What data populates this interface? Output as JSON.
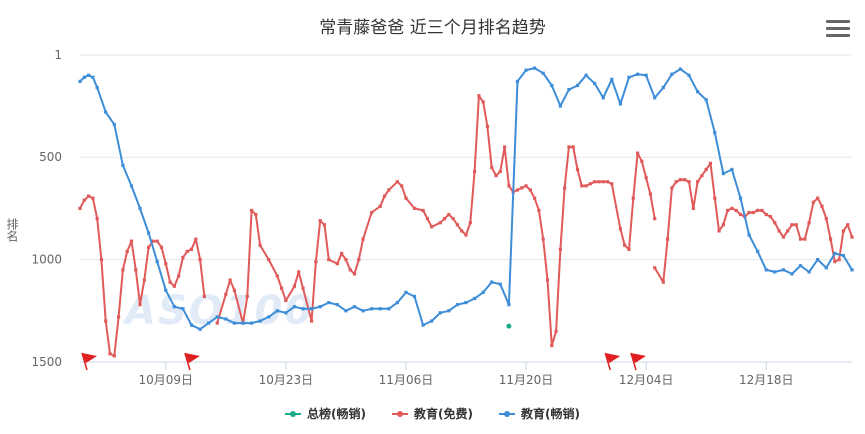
{
  "title": "常青藤爸爸 近三个月排名趋势",
  "watermark": "ASO100",
  "menu_icon": "hamburger-icon",
  "chart_data": {
    "type": "line",
    "title": "常青藤爸爸 近三个月排名趋势",
    "ylabel": "排名",
    "xlabel": "",
    "y_reversed": true,
    "ylim": [
      1,
      1500
    ],
    "yticks": [
      1,
      500,
      1000,
      1500
    ],
    "xlim": [
      0,
      90
    ],
    "xticks": [
      {
        "day": 10,
        "label": "10月09日"
      },
      {
        "day": 24,
        "label": "10月23日"
      },
      {
        "day": 38,
        "label": "11月06日"
      },
      {
        "day": 52,
        "label": "11月20日"
      },
      {
        "day": 66,
        "label": "12月04日"
      },
      {
        "day": 80,
        "label": "12月18日"
      }
    ],
    "grid": true,
    "legend_position": "bottom",
    "flags_at_days": [
      0,
      12,
      61,
      64
    ],
    "series": [
      {
        "name": "总榜(畅销)",
        "color": "#1aad8b",
        "points": [
          [
            50.0,
            1325
          ]
        ]
      },
      {
        "name": "教育(免费)",
        "color": "#e05a5a",
        "segments": [
          [
            [
              0.0,
              750
            ],
            [
              0.5,
              710
            ],
            [
              1.0,
              690
            ],
            [
              1.5,
              700
            ],
            [
              2.0,
              800
            ],
            [
              2.5,
              1000
            ],
            [
              3.0,
              1300
            ],
            [
              3.5,
              1460
            ],
            [
              4.0,
              1470
            ],
            [
              4.5,
              1280
            ],
            [
              5.0,
              1050
            ],
            [
              5.5,
              960
            ],
            [
              6.0,
              910
            ],
            [
              6.5,
              1050
            ],
            [
              7.0,
              1220
            ],
            [
              7.5,
              1100
            ],
            [
              8.0,
              940
            ],
            [
              8.5,
              910
            ],
            [
              9.0,
              910
            ],
            [
              9.5,
              940
            ],
            [
              10.0,
              1020
            ],
            [
              10.5,
              1110
            ],
            [
              11.0,
              1130
            ],
            [
              11.5,
              1080
            ],
            [
              12.0,
              990
            ],
            [
              12.5,
              960
            ],
            [
              13.0,
              950
            ],
            [
              13.5,
              900
            ],
            [
              14.0,
              1000
            ],
            [
              14.5,
              1180
            ]
          ],
          [
            [
              16.0,
              1310
            ],
            [
              17.0,
              1170
            ],
            [
              17.5,
              1100
            ],
            [
              18.0,
              1150
            ],
            [
              19.0,
              1310
            ],
            [
              19.5,
              1180
            ],
            [
              20.0,
              760
            ],
            [
              20.5,
              780
            ],
            [
              21.0,
              930
            ],
            [
              22.0,
              1000
            ],
            [
              23.0,
              1080
            ],
            [
              23.5,
              1140
            ],
            [
              24.0,
              1200
            ],
            [
              25.0,
              1130
            ],
            [
              25.5,
              1060
            ],
            [
              26.0,
              1140
            ],
            [
              27.0,
              1300
            ],
            [
              27.5,
              1010
            ],
            [
              28.0,
              810
            ],
            [
              28.5,
              830
            ],
            [
              29.0,
              1000
            ],
            [
              30.0,
              1020
            ],
            [
              30.5,
              970
            ],
            [
              31.0,
              1000
            ],
            [
              31.5,
              1050
            ],
            [
              32.0,
              1070
            ],
            [
              32.5,
              1000
            ],
            [
              33.0,
              900
            ],
            [
              34.0,
              770
            ],
            [
              35.0,
              740
            ],
            [
              35.5,
              690
            ],
            [
              36.0,
              660
            ],
            [
              37.0,
              620
            ],
            [
              37.5,
              640
            ],
            [
              38.0,
              700
            ],
            [
              39.0,
              750
            ],
            [
              40.0,
              760
            ],
            [
              40.5,
              800
            ],
            [
              41.0,
              840
            ],
            [
              42.0,
              820
            ],
            [
              42.5,
              800
            ],
            [
              43.0,
              780
            ],
            [
              43.5,
              800
            ],
            [
              44.0,
              830
            ],
            [
              44.5,
              860
            ],
            [
              45.0,
              880
            ],
            [
              45.5,
              820
            ],
            [
              46.0,
              570
            ],
            [
              46.5,
              200
            ],
            [
              47.0,
              230
            ],
            [
              47.5,
              350
            ],
            [
              48.0,
              550
            ],
            [
              48.5,
              590
            ],
            [
              49.0,
              570
            ],
            [
              49.5,
              450
            ],
            [
              50.0,
              640
            ],
            [
              50.5,
              670
            ],
            [
              51.0,
              660
            ],
            [
              51.5,
              650
            ],
            [
              52.0,
              640
            ],
            [
              52.5,
              660
            ],
            [
              53.0,
              700
            ],
            [
              53.5,
              760
            ],
            [
              54.0,
              900
            ],
            [
              54.5,
              1100
            ],
            [
              55.0,
              1420
            ],
            [
              55.5,
              1350
            ],
            [
              56.0,
              950
            ],
            [
              56.5,
              650
            ],
            [
              57.0,
              450
            ],
            [
              57.5,
              450
            ],
            [
              58.0,
              560
            ],
            [
              58.5,
              640
            ],
            [
              59.0,
              640
            ],
            [
              59.5,
              630
            ],
            [
              60.0,
              620
            ],
            [
              60.5,
              620
            ],
            [
              61.0,
              620
            ],
            [
              61.5,
              620
            ],
            [
              62.0,
              630
            ],
            [
              63.0,
              850
            ],
            [
              63.5,
              930
            ],
            [
              64.0,
              950
            ],
            [
              64.5,
              700
            ],
            [
              65.0,
              480
            ],
            [
              65.5,
              520
            ],
            [
              66.0,
              600
            ],
            [
              66.5,
              680
            ],
            [
              67.0,
              800
            ]
          ],
          [
            [
              67.0,
              1040
            ],
            [
              68.0,
              1110
            ],
            [
              68.5,
              900
            ],
            [
              69.0,
              650
            ],
            [
              69.5,
              620
            ],
            [
              70.0,
              610
            ],
            [
              70.5,
              610
            ],
            [
              71.0,
              620
            ],
            [
              71.5,
              750
            ],
            [
              72.0,
              620
            ],
            [
              72.5,
              590
            ],
            [
              73.0,
              560
            ],
            [
              73.5,
              530
            ],
            [
              74.0,
              700
            ],
            [
              74.5,
              860
            ],
            [
              75.0,
              830
            ],
            [
              75.5,
              760
            ],
            [
              76.0,
              750
            ],
            [
              76.5,
              760
            ],
            [
              77.0,
              780
            ],
            [
              77.5,
              790
            ],
            [
              78.0,
              770
            ],
            [
              78.5,
              770
            ],
            [
              79.0,
              760
            ],
            [
              79.5,
              760
            ],
            [
              80.0,
              780
            ],
            [
              80.5,
              790
            ],
            [
              81.0,
              820
            ],
            [
              81.5,
              860
            ],
            [
              82.0,
              890
            ],
            [
              82.5,
              860
            ],
            [
              83.0,
              830
            ],
            [
              83.5,
              830
            ],
            [
              84.0,
              900
            ],
            [
              84.5,
              900
            ],
            [
              85.0,
              820
            ],
            [
              85.5,
              720
            ],
            [
              86.0,
              700
            ],
            [
              86.5,
              740
            ],
            [
              87.0,
              800
            ],
            [
              87.5,
              900
            ],
            [
              88.0,
              1010
            ],
            [
              88.5,
              1000
            ],
            [
              89.0,
              860
            ],
            [
              89.5,
              830
            ],
            [
              90.0,
              890
            ]
          ]
        ]
      },
      {
        "name": "教育(畅销)",
        "color": "#3d8dd8",
        "segments": [
          [
            [
              0.0,
              130
            ],
            [
              0.5,
              110
            ],
            [
              1.0,
              100
            ],
            [
              1.5,
              110
            ],
            [
              2.0,
              160
            ],
            [
              3.0,
              280
            ],
            [
              4.0,
              340
            ],
            [
              5.0,
              540
            ],
            [
              6.0,
              640
            ],
            [
              7.0,
              750
            ],
            [
              8.0,
              870
            ],
            [
              9.0,
              1010
            ],
            [
              10.0,
              1150
            ],
            [
              11.0,
              1230
            ],
            [
              12.0,
              1240
            ],
            [
              13.0,
              1320
            ],
            [
              14.0,
              1340
            ],
            [
              15.0,
              1310
            ],
            [
              16.0,
              1280
            ],
            [
              17.0,
              1290
            ],
            [
              18.0,
              1310
            ],
            [
              19.0,
              1310
            ],
            [
              20.0,
              1310
            ],
            [
              21.0,
              1300
            ],
            [
              22.0,
              1280
            ],
            [
              23.0,
              1250
            ],
            [
              24.0,
              1260
            ],
            [
              25.0,
              1230
            ],
            [
              26.0,
              1240
            ],
            [
              27.0,
              1240
            ],
            [
              28.0,
              1230
            ],
            [
              29.0,
              1210
            ],
            [
              30.0,
              1220
            ],
            [
              31.0,
              1250
            ],
            [
              32.0,
              1230
            ],
            [
              33.0,
              1250
            ],
            [
              34.0,
              1240
            ],
            [
              35.0,
              1240
            ],
            [
              36.0,
              1240
            ],
            [
              37.0,
              1210
            ],
            [
              38.0,
              1160
            ],
            [
              39.0,
              1180
            ],
            [
              40.0,
              1320
            ],
            [
              41.0,
              1300
            ],
            [
              42.0,
              1260
            ],
            [
              43.0,
              1250
            ],
            [
              44.0,
              1220
            ],
            [
              45.0,
              1210
            ],
            [
              46.0,
              1190
            ],
            [
              47.0,
              1160
            ],
            [
              48.0,
              1110
            ],
            [
              49.0,
              1120
            ],
            [
              50.0,
              1220
            ],
            [
              51.0,
              130
            ],
            [
              52.0,
              75
            ],
            [
              53.0,
              65
            ],
            [
              54.0,
              90
            ],
            [
              55.0,
              150
            ],
            [
              56.0,
              250
            ],
            [
              57.0,
              170
            ],
            [
              58.0,
              150
            ],
            [
              59.0,
              100
            ],
            [
              60.0,
              140
            ],
            [
              61.0,
              210
            ],
            [
              62.0,
              120
            ],
            [
              63.0,
              240
            ],
            [
              64.0,
              110
            ],
            [
              65.0,
              95
            ],
            [
              66.0,
              100
            ],
            [
              67.0,
              210
            ],
            [
              68.0,
              160
            ],
            [
              69.0,
              95
            ],
            [
              70.0,
              70
            ],
            [
              71.0,
              100
            ],
            [
              72.0,
              180
            ],
            [
              73.0,
              220
            ],
            [
              74.0,
              380
            ],
            [
              75.0,
              580
            ],
            [
              76.0,
              560
            ],
            [
              77.0,
              700
            ],
            [
              78.0,
              880
            ],
            [
              79.0,
              960
            ],
            [
              80.0,
              1050
            ],
            [
              81.0,
              1060
            ],
            [
              82.0,
              1050
            ],
            [
              83.0,
              1070
            ],
            [
              84.0,
              1030
            ],
            [
              85.0,
              1060
            ],
            [
              86.0,
              1000
            ],
            [
              87.0,
              1040
            ],
            [
              88.0,
              970
            ],
            [
              89.0,
              980
            ],
            [
              90.0,
              1050
            ]
          ]
        ]
      }
    ]
  }
}
